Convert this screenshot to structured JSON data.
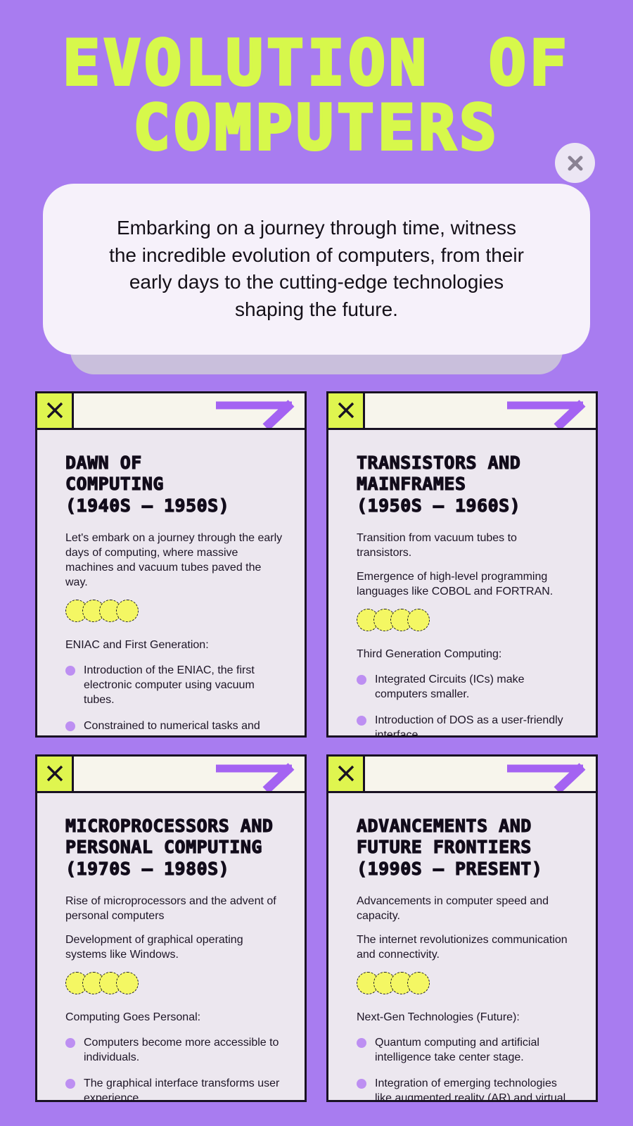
{
  "colors": {
    "bg": "#a87cf0",
    "lime": "#d7f84b",
    "lime2": "#dff54f",
    "card-bg": "#ece7ef",
    "card-header-bg": "#f7f5ec",
    "intro-bg": "#f6f1fa",
    "intro-shadow": "#c9bfdc",
    "ink": "#191223",
    "arrow": "#a463f2",
    "bullet": "#bd8ff2",
    "dots": "#f4f763",
    "xgrey": "#8a8293"
  },
  "icons": {
    "page_close": "x-icon",
    "window_close": "x-icon",
    "window_arrow": "diagonal-arrow-icon"
  },
  "header": {
    "title_line1": "EVOLUTION OF",
    "title_line2": "COMPUTERS"
  },
  "intro": {
    "text": "Embarking on a journey through time, witness the incredible evolution of computers, from their early days to the cutting-edge technologies shaping the future."
  },
  "cards": [
    {
      "title": "DAWN OF\nCOMPUTING\n(1940S – 1950S)",
      "paragraphs": [
        "Let's embark on a journey through the early days of computing, where massive machines and vacuum tubes paved the way."
      ],
      "list_header": "ENIAC and First Generation:",
      "bullets": [
        "Introduction of the ENIAC, the first electronic computer using vacuum tubes.",
        "Constrained to numerical tasks and significant physical size."
      ]
    },
    {
      "title": "TRANSISTORS AND\nMAINFRAMES\n(1950S – 1960S)",
      "paragraphs": [
        "Transition from vacuum tubes to transistors.",
        "Emergence of high-level programming languages like COBOL and FORTRAN."
      ],
      "list_header": "Third Generation Computing:",
      "bullets": [
        "Integrated Circuits (ICs) make computers smaller.",
        "Introduction of DOS as a user-friendly interface."
      ]
    },
    {
      "title": "MICROPROCESSORS AND\nPERSONAL COMPUTING\n(1970S – 1980S)",
      "paragraphs": [
        "Rise of microprocessors and the advent of personal computers",
        "Development of graphical operating systems like Windows."
      ],
      "list_header": "Computing Goes Personal:",
      "bullets": [
        "Computers become more accessible to individuals.",
        "The graphical interface transforms user experience."
      ]
    },
    {
      "title": "ADVANCEMENTS AND\nFUTURE FRONTIERS\n(1990S – PRESENT)",
      "paragraphs": [
        "Advancements in computer speed and  capacity.",
        "The internet revolutionizes communication and connectivity."
      ],
      "list_header": "Next-Gen Technologies (Future):",
      "bullets": [
        "Quantum computing and artificial intelligence take center stage.",
        "Integration of emerging technologies like augmented reality (AR) and virtual reality (VR)."
      ]
    }
  ]
}
